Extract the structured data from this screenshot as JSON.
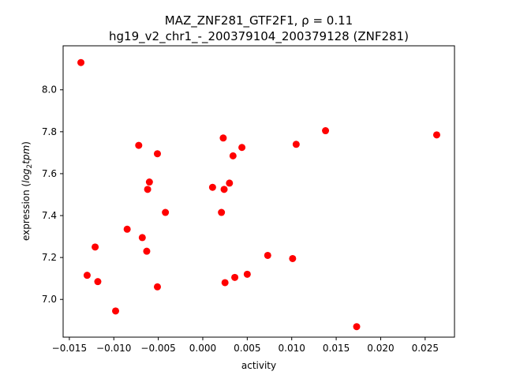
{
  "chart_data": {
    "type": "scatter",
    "title_line1": "MAZ_ZNF281_GTF2F1, ρ = 0.11",
    "title_line2": "hg19_v2_chr1_-_200379104_200379128 (ZNF281)",
    "xlabel": "activity",
    "ylabel_prefix": "expression (",
    "ylabel_math": "log",
    "ylabel_sub": "2",
    "ylabel_var": "tpm",
    "ylabel_suffix": ")",
    "xlim": [
      -0.0157,
      0.0283
    ],
    "ylim": [
      6.82,
      8.21
    ],
    "x_ticks": [
      -0.015,
      -0.01,
      -0.005,
      0.0,
      0.005,
      0.01,
      0.015,
      0.02,
      0.025
    ],
    "x_tick_labels": [
      "−0.015",
      "−0.010",
      "−0.005",
      "0.000",
      "0.005",
      "0.010",
      "0.015",
      "0.020",
      "0.025"
    ],
    "y_ticks": [
      7.0,
      7.2,
      7.4,
      7.6,
      7.8,
      8.0
    ],
    "y_tick_labels": [
      "7.0",
      "7.2",
      "7.4",
      "7.6",
      "7.8",
      "8.0"
    ],
    "marker_color": "#ff0000",
    "points": [
      {
        "x": -0.0137,
        "y": 8.13
      },
      {
        "x": -0.013,
        "y": 7.115
      },
      {
        "x": -0.0121,
        "y": 7.25
      },
      {
        "x": -0.0118,
        "y": 7.085
      },
      {
        "x": -0.0098,
        "y": 6.945
      },
      {
        "x": -0.0085,
        "y": 7.335
      },
      {
        "x": -0.0072,
        "y": 7.735
      },
      {
        "x": -0.0068,
        "y": 7.295
      },
      {
        "x": -0.0063,
        "y": 7.23
      },
      {
        "x": -0.0062,
        "y": 7.525
      },
      {
        "x": -0.006,
        "y": 7.56
      },
      {
        "x": -0.0051,
        "y": 7.695
      },
      {
        "x": -0.0051,
        "y": 7.06
      },
      {
        "x": -0.0042,
        "y": 7.415
      },
      {
        "x": 0.0011,
        "y": 7.535
      },
      {
        "x": 0.0021,
        "y": 7.415
      },
      {
        "x": 0.0023,
        "y": 7.77
      },
      {
        "x": 0.0024,
        "y": 7.525
      },
      {
        "x": 0.0025,
        "y": 7.08
      },
      {
        "x": 0.003,
        "y": 7.555
      },
      {
        "x": 0.0034,
        "y": 7.685
      },
      {
        "x": 0.0036,
        "y": 7.105
      },
      {
        "x": 0.0044,
        "y": 7.725
      },
      {
        "x": 0.005,
        "y": 7.12
      },
      {
        "x": 0.0073,
        "y": 7.21
      },
      {
        "x": 0.0101,
        "y": 7.195
      },
      {
        "x": 0.0105,
        "y": 7.74
      },
      {
        "x": 0.0138,
        "y": 7.805
      },
      {
        "x": 0.0173,
        "y": 6.87
      },
      {
        "x": 0.0263,
        "y": 7.785
      }
    ]
  }
}
